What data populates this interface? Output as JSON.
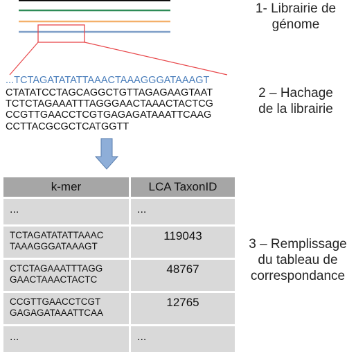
{
  "diagram": {
    "steps": [
      {
        "label": "1- Librairie de\ngénome"
      },
      {
        "label": "2 – Hachage\nde la librairie"
      },
      {
        "label": "3 – Remplissage\ndu tableau de\ncorrespondance"
      }
    ],
    "library_lines": [
      {
        "color": "#000000"
      },
      {
        "color": "#2e8b57"
      },
      {
        "color": "#f4b06a"
      },
      {
        "color": "#7f9fc8"
      }
    ],
    "zoom_color": "#e8474a",
    "highlight_sequence": "...TCTAGATATATTAAACTAAAGGGATAAAGT",
    "sequence_lines": "CTATATCCTAGCAGGCTGTTAGAGAAGTAAT\nTCTCTAGAAATTTAGGGAACTAAACTACTCG\nCCGTTGAACCTCGTGAGAGATAAATTCAAG\nCCTTACGCGCTCATGGTT",
    "arrow_color": "#8eaed8",
    "table": {
      "headers": [
        "k-mer",
        "LCA TaxonID"
      ],
      "rows": [
        {
          "kmer": "...",
          "taxid": "..."
        },
        {
          "kmer": "TCTAGATATATTAAAC\nTAAAGGGATAAAGT",
          "taxid": "119043"
        },
        {
          "kmer": "CTCTAGAAATTTAGG\nGAACTAAACTACTC",
          "taxid": "48767"
        },
        {
          "kmer": "CCGTTGAACCTCGT\nGAGAGATAAATTCAA",
          "taxid": "12765"
        },
        {
          "kmer": "...",
          "taxid": "..."
        }
      ]
    }
  }
}
